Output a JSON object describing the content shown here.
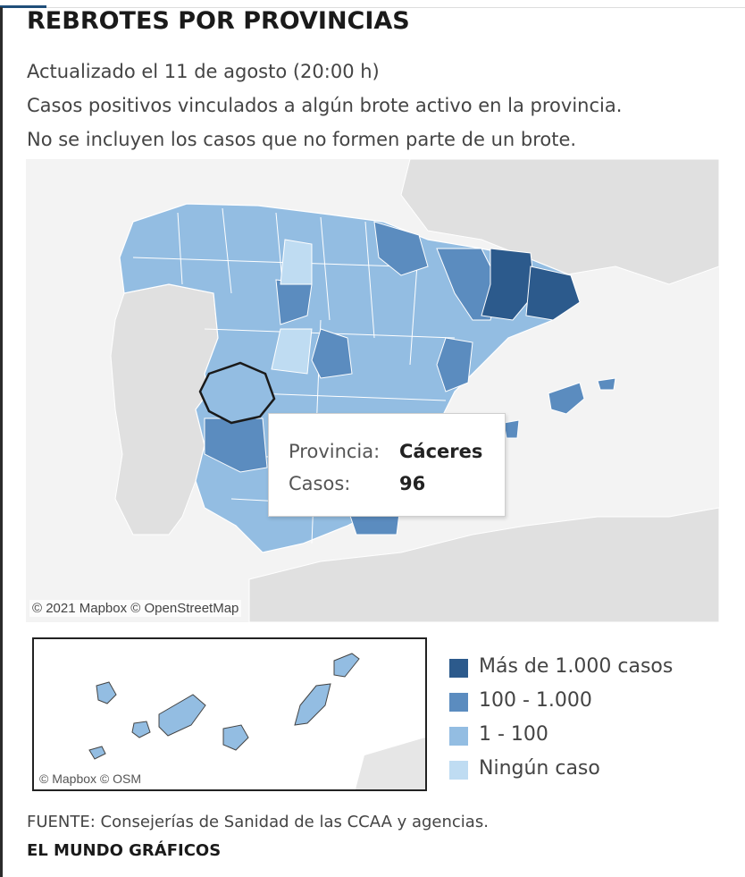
{
  "title": "REBROTES POR PROVINCIAS",
  "subtitle_lines": [
    "Actualizado el 11 de agosto (20:00 h)",
    "Casos positivos vinculados a algún brote activo en la provincia.",
    "No se incluyen los casos que no formen parte de un brote."
  ],
  "map": {
    "attribution": "© 2021 Mapbox  © OpenStreetMap",
    "highlighted_province": "Cáceres",
    "tooltip": {
      "province_label": "Provincia:",
      "province_value": "Cáceres",
      "cases_label": "Casos:",
      "cases_value": "96"
    }
  },
  "inset": {
    "attribution": "© Mapbox  © OSM"
  },
  "legend": [
    {
      "label": "Más de 1.000 casos",
      "color": "#2c5a8c"
    },
    {
      "label": "100 - 1.000",
      "color": "#5b8cbf"
    },
    {
      "label": "1 - 100",
      "color": "#93bde2"
    },
    {
      "label": "Ningún caso",
      "color": "#bfdcf2"
    }
  ],
  "colors": {
    "land_other": "#e2e2e2",
    "sea": "#f2f2f2",
    "border": "#ffffff"
  },
  "footer": {
    "source": "FUENTE: Consejerías de Sanidad de las CCAA y agencias.",
    "brand": "EL MUNDO GRÁFICOS"
  }
}
